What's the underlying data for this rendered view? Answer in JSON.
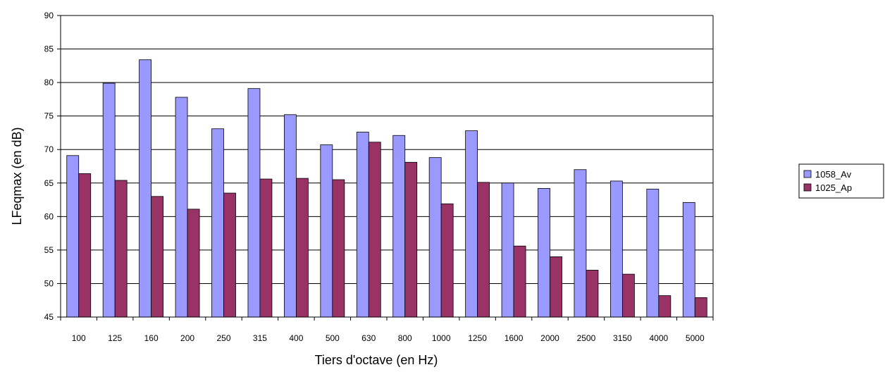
{
  "chart_data": {
    "type": "bar",
    "title": "",
    "xlabel": "Tiers d'octave (en Hz)",
    "ylabel": "LFeqmax (en dB)",
    "ylim": [
      45,
      90
    ],
    "ytick_step": 5,
    "grid": true,
    "legend_position": "right",
    "categories": [
      "100",
      "125",
      "160",
      "200",
      "250",
      "315",
      "400",
      "500",
      "630",
      "800",
      "1000",
      "1250",
      "1600",
      "2000",
      "2500",
      "3150",
      "4000",
      "5000"
    ],
    "series": [
      {
        "name": "1058_Av",
        "color": "#9999FF",
        "values": [
          69.1,
          79.9,
          83.4,
          77.8,
          73.1,
          79.1,
          75.2,
          70.7,
          72.6,
          72.1,
          68.8,
          72.8,
          65.0,
          64.2,
          67.0,
          65.3,
          64.1,
          62.1
        ]
      },
      {
        "name": "1025_Ap",
        "color": "#993366",
        "values": [
          66.4,
          65.4,
          63.0,
          61.1,
          63.5,
          65.6,
          65.7,
          65.5,
          71.1,
          68.1,
          61.9,
          65.1,
          55.6,
          54.0,
          52.0,
          51.4,
          48.2,
          47.9
        ]
      }
    ]
  }
}
